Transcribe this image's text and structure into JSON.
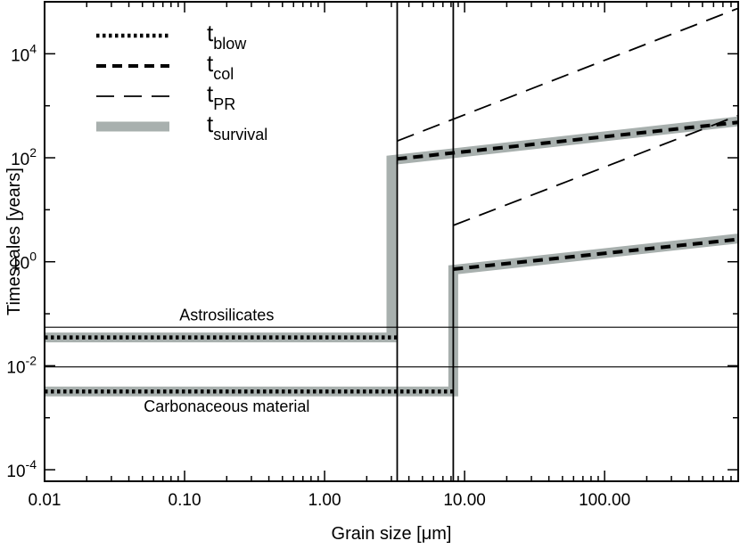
{
  "chart_data": {
    "type": "line",
    "xlabel": "Grain size [μm]",
    "ylabel": "Timescales [years]",
    "x_scale": "log",
    "y_scale": "log",
    "xlim": [
      0.01,
      900
    ],
    "ylim": [
      6e-05,
      100000
    ],
    "x_ticks": [
      {
        "value": 0.01,
        "label": "0.01"
      },
      {
        "value": 0.1,
        "label": "0.10"
      },
      {
        "value": 1,
        "label": "1.00"
      },
      {
        "value": 10,
        "label": "10.00"
      },
      {
        "value": 100,
        "label": "100.00"
      }
    ],
    "y_ticks": [
      {
        "value": 0.0001,
        "base": "10",
        "exp": "-4"
      },
      {
        "value": 0.01,
        "base": "10",
        "exp": "-2"
      },
      {
        "value": 1,
        "base": "10",
        "exp": "0"
      },
      {
        "value": 100,
        "base": "10",
        "exp": "2"
      },
      {
        "value": 10000,
        "base": "10",
        "exp": "4"
      }
    ],
    "legend_position": "top-left",
    "legend": [
      {
        "main": "t",
        "sub": "blow",
        "style": "dotted",
        "color": "#000000"
      },
      {
        "main": "t",
        "sub": "col",
        "style": "dashed-thick",
        "color": "#000000"
      },
      {
        "main": "t",
        "sub": "PR",
        "style": "dashed-thin",
        "color": "#000000"
      },
      {
        "main": "t",
        "sub": "survival",
        "style": "solid-wide",
        "color": "#a8b0ae"
      }
    ],
    "annotations": [
      {
        "text": "Astrosilicates",
        "x": 0.2,
        "y": 0.075
      },
      {
        "text": "Carbonaceous material",
        "x": 0.2,
        "y": 0.0013
      }
    ],
    "series": [
      {
        "style": "survival",
        "color": "#a8b0ae",
        "points": [
          [
            0.01,
            0.035
          ],
          [
            3.0,
            0.035
          ],
          [
            3.0,
            90
          ],
          [
            900,
            500
          ]
        ]
      },
      {
        "style": "survival",
        "color": "#a8b0ae",
        "points": [
          [
            0.01,
            0.0032
          ],
          [
            8.3,
            0.0032
          ],
          [
            8.3,
            0.7
          ],
          [
            900,
            2.8
          ]
        ]
      },
      {
        "style": "blow",
        "color": "#000000",
        "points": [
          [
            0.01,
            0.035
          ],
          [
            3.3,
            0.035
          ]
        ]
      },
      {
        "style": "blow",
        "color": "#000000",
        "points": [
          [
            0.01,
            0.0032
          ],
          [
            8.3,
            0.0032
          ]
        ]
      },
      {
        "style": "col",
        "color": "#000000",
        "points": [
          [
            3.3,
            95
          ],
          [
            900,
            480
          ]
        ]
      },
      {
        "style": "col",
        "color": "#000000",
        "points": [
          [
            8.3,
            0.72
          ],
          [
            900,
            2.7
          ]
        ]
      },
      {
        "style": "pr",
        "color": "#000000",
        "points": [
          [
            3.3,
            210
          ],
          [
            900,
            75000
          ]
        ]
      },
      {
        "style": "pr",
        "color": "#000000",
        "points": [
          [
            8.3,
            5
          ],
          [
            900,
            650
          ]
        ]
      },
      {
        "style": "ref",
        "color": "#000000",
        "points": [
          [
            0.01,
            0.055
          ],
          [
            900,
            0.055
          ]
        ]
      },
      {
        "style": "ref",
        "color": "#000000",
        "points": [
          [
            0.01,
            0.0095
          ],
          [
            900,
            0.0095
          ]
        ]
      },
      {
        "style": "vline",
        "color": "#000000",
        "x": 3.3
      },
      {
        "style": "vline",
        "color": "#000000",
        "x": 8.3
      }
    ]
  }
}
